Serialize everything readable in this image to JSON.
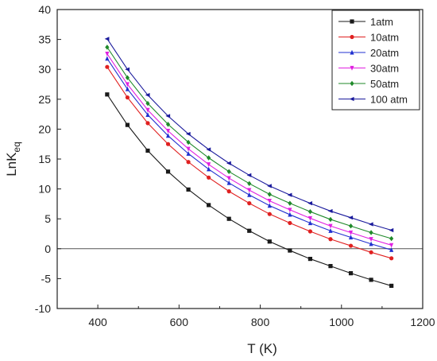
{
  "chart_data": {
    "type": "line",
    "title": "",
    "xlabel": "T (K)",
    "ylabel": {
      "main": "LnK",
      "sub": "eq"
    },
    "xlim": [
      300,
      1200
    ],
    "ylim": [
      -10,
      40
    ],
    "xticks": [
      400,
      600,
      800,
      1000,
      1200
    ],
    "yticks": [
      -10,
      -5,
      0,
      5,
      10,
      15,
      20,
      25,
      30,
      35,
      40
    ],
    "xtick_labels": [
      "400",
      "600",
      "800",
      "1000",
      "1200"
    ],
    "ytick_labels": [
      "-10",
      "-5",
      "0",
      "5",
      "10",
      "15",
      "20",
      "25",
      "30",
      "35",
      "40"
    ],
    "grid": false,
    "reference_line_y": 0,
    "legend_position": "top-right",
    "x": [
      423,
      473,
      523,
      573,
      623,
      673,
      723,
      773,
      823,
      873,
      923,
      973,
      1023,
      1073,
      1123
    ],
    "series": [
      {
        "name": "1atm",
        "color": "#1a1a1a",
        "marker": "square",
        "values": [
          25.8,
          20.7,
          16.4,
          12.9,
          9.9,
          7.3,
          5.0,
          3.0,
          1.2,
          -0.3,
          -1.7,
          -2.9,
          -4.1,
          -5.2,
          -6.2
        ]
      },
      {
        "name": "10atm",
        "color": "#e02020",
        "marker": "circle",
        "values": [
          30.4,
          25.3,
          21.0,
          17.5,
          14.5,
          11.9,
          9.6,
          7.6,
          5.8,
          4.3,
          2.9,
          1.6,
          0.5,
          -0.6,
          -1.6
        ]
      },
      {
        "name": "20atm",
        "color": "#2030d0",
        "marker": "triangle",
        "values": [
          31.8,
          26.7,
          22.4,
          18.9,
          15.9,
          13.3,
          11.0,
          9.0,
          7.2,
          5.7,
          4.3,
          3.0,
          1.9,
          0.8,
          -0.2
        ]
      },
      {
        "name": "30atm",
        "color": "#e020e0",
        "marker": "triangle-down",
        "values": [
          32.6,
          27.5,
          23.2,
          19.7,
          16.7,
          14.1,
          11.8,
          9.8,
          8.0,
          6.5,
          5.1,
          3.8,
          2.7,
          1.6,
          0.6
        ]
      },
      {
        "name": "50atm",
        "color": "#1f8a2a",
        "marker": "diamond",
        "values": [
          33.7,
          28.6,
          24.3,
          20.8,
          17.8,
          15.2,
          12.9,
          10.9,
          9.1,
          7.6,
          6.2,
          4.9,
          3.8,
          2.7,
          1.7
        ]
      },
      {
        "name": "100 atm",
        "color": "#1a1a9c",
        "marker": "triangle-left",
        "values": [
          35.1,
          30.0,
          25.7,
          22.2,
          19.2,
          16.6,
          14.3,
          12.3,
          10.5,
          9.0,
          7.6,
          6.3,
          5.2,
          4.1,
          3.1
        ]
      }
    ]
  }
}
